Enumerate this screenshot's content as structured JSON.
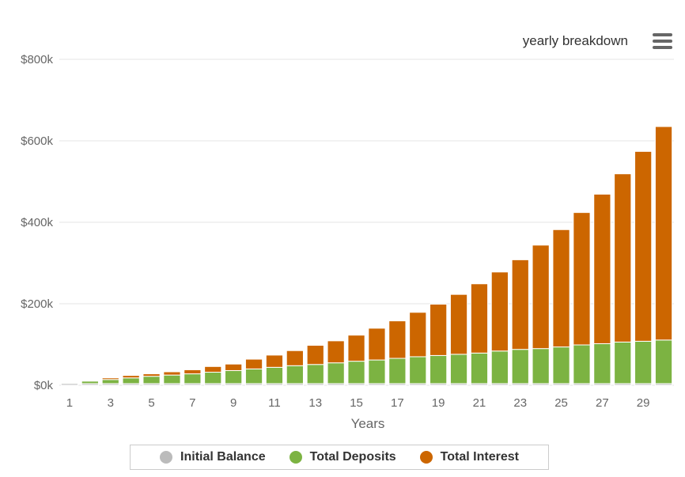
{
  "menu_icon": "hamburger-menu-icon",
  "colors": {
    "initial_balance": "#bbbbbb",
    "total_deposits": "#7cb342",
    "total_interest": "#cc6600",
    "grid": "#e6e6e6"
  },
  "chart_data": {
    "type": "bar",
    "stacked": true,
    "title": "yearly breakdown",
    "xlabel": "Years",
    "ylabel": "",
    "ylim": [
      0,
      800000
    ],
    "yticks": [
      "$0k",
      "$200k",
      "$400k",
      "$600k",
      "$800k"
    ],
    "xtick_labels": [
      "1",
      "3",
      "5",
      "7",
      "9",
      "11",
      "13",
      "15",
      "17",
      "19",
      "21",
      "23",
      "25",
      "27",
      "29"
    ],
    "grid": true,
    "legend_position": "bottom",
    "categories": [
      1,
      2,
      3,
      4,
      5,
      6,
      7,
      8,
      9,
      10,
      11,
      12,
      13,
      14,
      15,
      16,
      17,
      18,
      19,
      20,
      21,
      22,
      23,
      24,
      25,
      26,
      27,
      28,
      29,
      30
    ],
    "series": [
      {
        "name": "Initial Balance",
        "color": "#bbbbbb",
        "values": [
          4000,
          4000,
          4000,
          4000,
          4000,
          4000,
          4000,
          4000,
          4000,
          4000,
          4000,
          4000,
          4000,
          4000,
          4000,
          4000,
          4000,
          4000,
          4000,
          4000,
          4000,
          4000,
          4000,
          4000,
          4000,
          4000,
          4000,
          4000,
          4000,
          4000
        ]
      },
      {
        "name": "Total Deposits",
        "color": "#7cb342",
        "values": [
          2000,
          6000,
          10000,
          14000,
          18000,
          21000,
          24000,
          28000,
          32000,
          36000,
          40000,
          44000,
          47000,
          51000,
          55000,
          58000,
          62000,
          66000,
          69000,
          72000,
          75000,
          80000,
          84000,
          86000,
          90000,
          95000,
          98000,
          102000,
          104000,
          107000
        ]
      },
      {
        "name": "Total Interest",
        "color": "#cc6600",
        "values": [
          0,
          0,
          4000,
          6000,
          6000,
          8000,
          10000,
          14000,
          16000,
          24000,
          30000,
          37000,
          47000,
          54000,
          64000,
          78000,
          92000,
          109000,
          126000,
          147000,
          170000,
          194000,
          220000,
          254000,
          288000,
          325000,
          367000,
          413000,
          466000,
          524000
        ]
      }
    ]
  }
}
